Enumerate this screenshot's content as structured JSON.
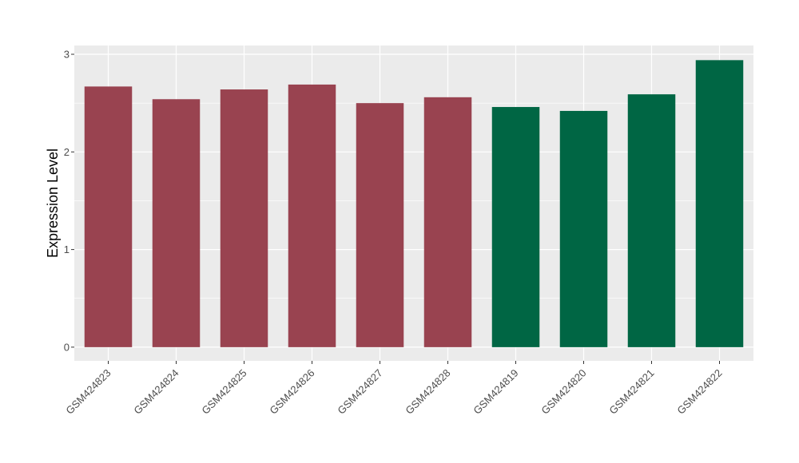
{
  "chart_data": {
    "type": "bar",
    "title": "",
    "xlabel": "",
    "ylabel": "Expression Level",
    "categories": [
      "GSM424823",
      "GSM424824",
      "GSM424825",
      "GSM424826",
      "GSM424827",
      "GSM424828",
      "GSM424819",
      "GSM424820",
      "GSM424821",
      "GSM424822"
    ],
    "values": [
      2.67,
      2.54,
      2.64,
      2.69,
      2.5,
      2.56,
      2.46,
      2.42,
      2.59,
      2.94
    ],
    "bar_colors": [
      "#994350",
      "#994350",
      "#994350",
      "#994350",
      "#994350",
      "#994350",
      "#006644",
      "#006644",
      "#006644",
      "#006644"
    ],
    "yticks": [
      0,
      1,
      2,
      3
    ],
    "ylim": [
      -0.14,
      3.09
    ],
    "grid": true,
    "panel_background": "#ebebeb",
    "grid_color": "#ffffff",
    "legend": "none"
  }
}
